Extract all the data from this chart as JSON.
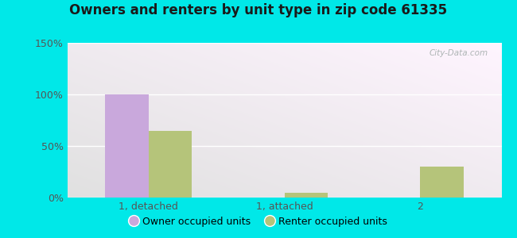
{
  "title": "Owners and renters by unit type in zip code 61335",
  "categories": [
    "1, detached",
    "1, attached",
    "2"
  ],
  "owner_values": [
    100,
    0,
    0
  ],
  "renter_values": [
    65,
    5,
    30
  ],
  "owner_color": "#c9a8dc",
  "renter_color": "#b5c47a",
  "ylim": [
    0,
    150
  ],
  "yticks": [
    0,
    50,
    100,
    150
  ],
  "yticklabels": [
    "0%",
    "50%",
    "100%",
    "150%"
  ],
  "bar_width": 0.32,
  "bg_outer": "#00e8e8",
  "watermark": "City-Data.com",
  "legend_owner": "Owner occupied units",
  "legend_renter": "Renter occupied units",
  "title_fontsize": 12,
  "tick_fontsize": 9,
  "legend_fontsize": 9
}
